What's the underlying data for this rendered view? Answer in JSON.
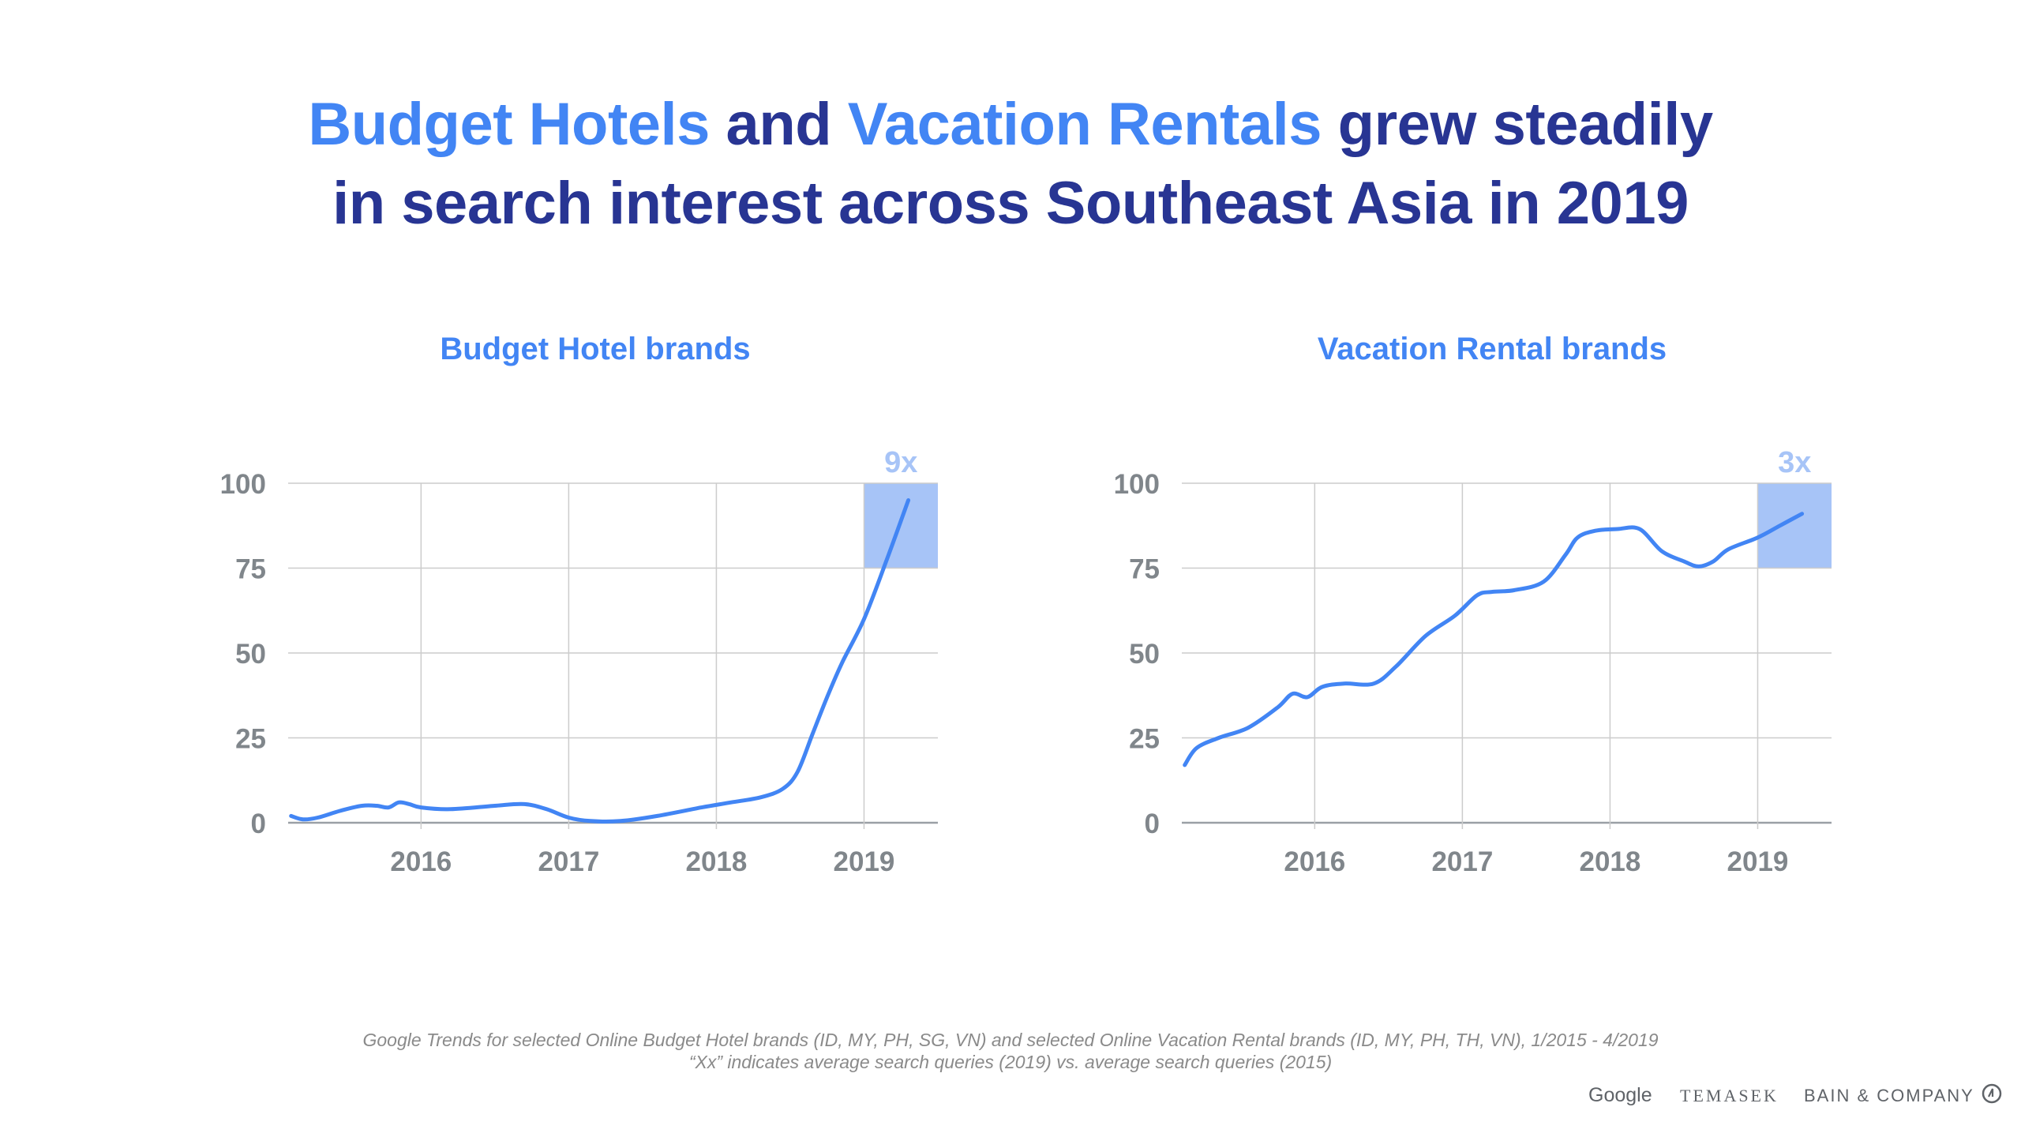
{
  "headline": {
    "part1": "Budget Hotels",
    "part2": " and ",
    "part3": "Vacation Rentals",
    "part4": " grew steadily",
    "line2": "in search interest across Southeast Asia in 2019"
  },
  "colors": {
    "accent": "#4285f4",
    "headline_dark": "#283593",
    "highlight_box": "#a7c4f7",
    "highlight_text": "#a7c4f7",
    "grid": "#cccccc",
    "axis_text": "#80868b"
  },
  "chart_data": [
    {
      "type": "line",
      "title": "Budget Hotel brands",
      "xlabel": "",
      "ylabel": "",
      "xlim": [
        2015.1,
        2019.5
      ],
      "ylim": [
        0,
        100
      ],
      "x_ticks": [
        "2016",
        "2017",
        "2018",
        "2019"
      ],
      "y_ticks": [
        "0",
        "25",
        "50",
        "75",
        "100"
      ],
      "grid": true,
      "highlight": {
        "x_from": 2019.0,
        "x_to": 2019.5,
        "y_from": 75,
        "y_to": 100,
        "label": "9x"
      },
      "series": [
        {
          "x": [
            2015.12,
            2015.2,
            2015.3,
            2015.45,
            2015.6,
            2015.7,
            2015.78,
            2015.85,
            2015.92,
            2016.0,
            2016.2,
            2016.5,
            2016.7,
            2016.85,
            2017.0,
            2017.15,
            2017.35,
            2017.6,
            2017.9,
            2018.1,
            2018.3,
            2018.45,
            2018.55,
            2018.65,
            2018.75,
            2018.85,
            2019.0,
            2019.15,
            2019.3
          ],
          "y": [
            2,
            1,
            1.5,
            3.5,
            5,
            5,
            4.5,
            6,
            5.5,
            4.5,
            4,
            5,
            5.5,
            4,
            1.5,
            0.5,
            0.5,
            2,
            4.5,
            6,
            7.5,
            10,
            15,
            26,
            37,
            47,
            60,
            77,
            95
          ]
        }
      ]
    },
    {
      "type": "line",
      "title": "Vacation Rental brands",
      "xlabel": "",
      "ylabel": "",
      "xlim": [
        2015.1,
        2019.5
      ],
      "ylim": [
        0,
        100
      ],
      "x_ticks": [
        "2016",
        "2017",
        "2018",
        "2019"
      ],
      "y_ticks": [
        "0",
        "25",
        "50",
        "75",
        "100"
      ],
      "grid": true,
      "highlight": {
        "x_from": 2019.0,
        "x_to": 2019.5,
        "y_from": 75,
        "y_to": 100,
        "label": "3x"
      },
      "series": [
        {
          "x": [
            2015.12,
            2015.2,
            2015.35,
            2015.55,
            2015.75,
            2015.85,
            2015.95,
            2016.05,
            2016.2,
            2016.4,
            2016.55,
            2016.75,
            2016.95,
            2017.1,
            2017.2,
            2017.35,
            2017.55,
            2017.7,
            2017.78,
            2017.9,
            2018.05,
            2018.2,
            2018.35,
            2018.5,
            2018.6,
            2018.7,
            2018.8,
            2019.0,
            2019.15,
            2019.3
          ],
          "y": [
            17,
            22,
            25,
            28,
            34,
            38,
            37,
            40,
            41,
            41,
            46,
            55,
            61,
            67,
            68,
            68.5,
            71,
            79,
            84,
            86,
            86.5,
            86.5,
            80,
            77,
            75.5,
            77,
            80.5,
            84,
            87.5,
            91
          ]
        }
      ]
    }
  ],
  "footnote": {
    "line1": "Google Trends for selected Online Budget Hotel brands (ID, MY, PH, SG, VN)  and selected Online Vacation Rental brands (ID, MY, PH, TH, VN), 1/2015 - 4/2019",
    "line2": "“Xx” indicates average search queries (2019) vs. average search queries (2015)"
  },
  "logos": {
    "google": "Google",
    "temasek": "TEMASEK",
    "bain": "BAIN & COMPANY"
  }
}
